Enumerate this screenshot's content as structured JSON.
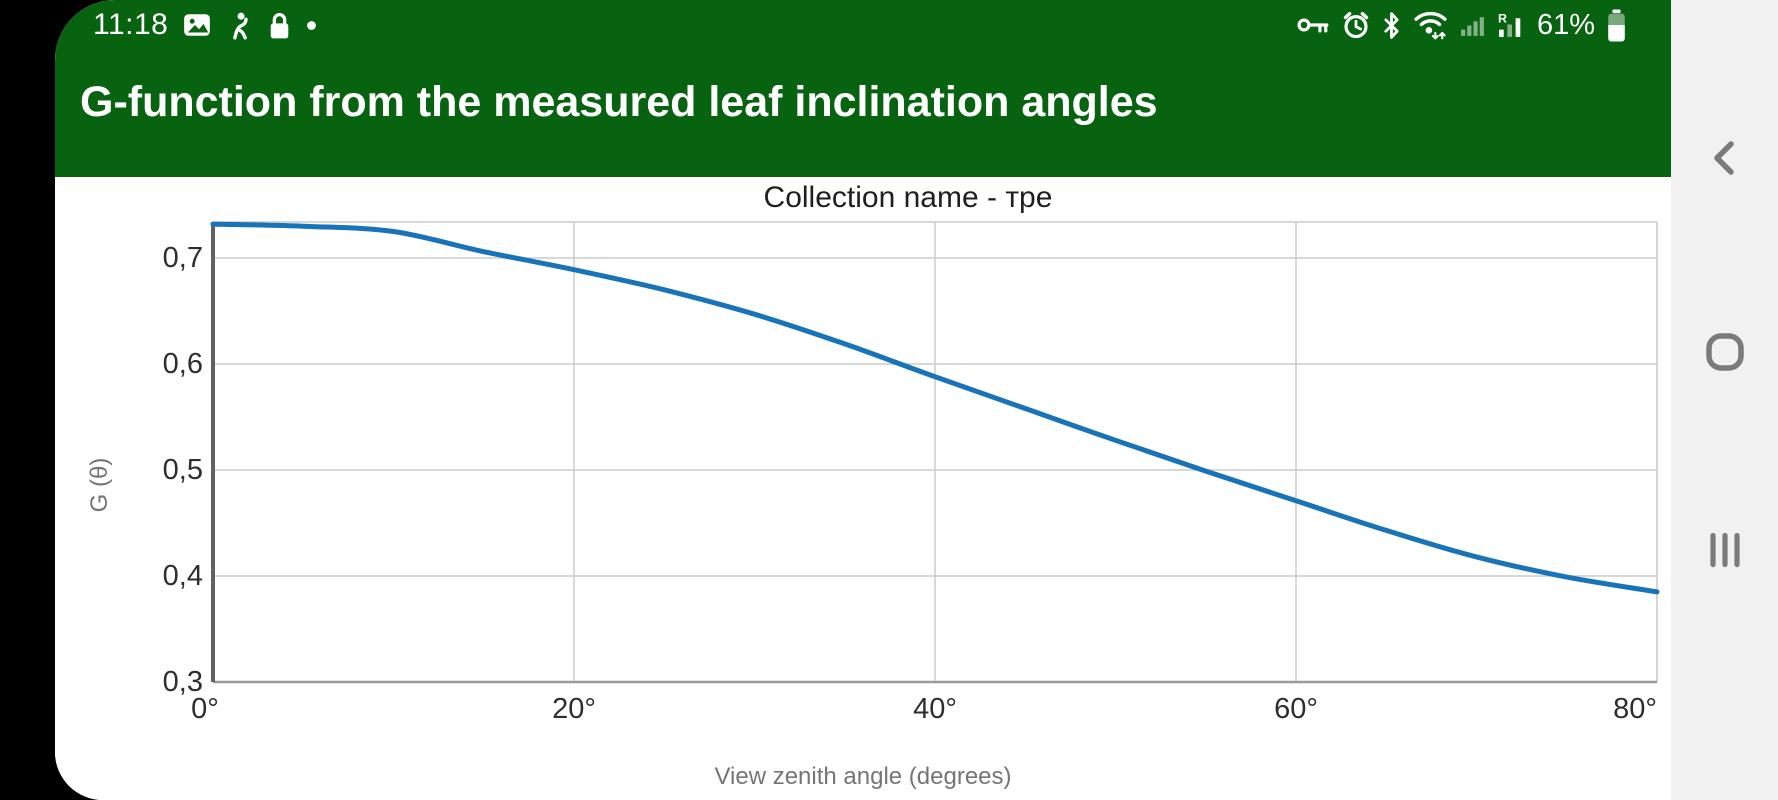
{
  "status_bar": {
    "time": "11:18",
    "battery_level": "61%",
    "roaming_label": "R",
    "left_icons": [
      "image-icon",
      "person-icon",
      "lock-icon",
      "notification-dot"
    ],
    "right_icons": [
      "vpn-key-icon",
      "alarm-icon",
      "bluetooth-icon",
      "wifi-icon",
      "signal-weak-icon",
      "signal-roaming-icon",
      "battery-icon"
    ]
  },
  "header": {
    "title": "G-function from the measured leaf inclination angles"
  },
  "nav_bar": {
    "icons": [
      "back-icon",
      "home-icon",
      "recents-icon"
    ]
  },
  "colors": {
    "header_green": "#086311",
    "curve_blue": "#1873B9",
    "nav_bg": "#F1F1F1",
    "grid_gray": "#CCCCCC",
    "axis_dark": "#616161"
  },
  "chart_data": {
    "type": "line",
    "title": "Collection name - тре",
    "xlabel": "View zenith angle (degrees)",
    "ylabel": "G (θ)",
    "x": [
      0,
      5,
      10,
      15,
      20,
      25,
      30,
      35,
      40,
      45,
      50,
      55,
      60,
      65,
      70,
      75,
      80
    ],
    "y": [
      0.732,
      0.73,
      0.725,
      0.706,
      0.689,
      0.67,
      0.647,
      0.619,
      0.588,
      0.558,
      0.528,
      0.499,
      0.471,
      0.443,
      0.418,
      0.399,
      0.385
    ],
    "xlim": [
      0,
      80
    ],
    "ylim": [
      0.3,
      0.734
    ],
    "x_ticks": [
      0,
      20,
      40,
      60,
      80
    ],
    "x_tick_labels": [
      "0°",
      "20°",
      "40°",
      "60°",
      "80°"
    ],
    "y_ticks": [
      0.3,
      0.4,
      0.5,
      0.6,
      0.7
    ],
    "y_tick_labels": [
      "0,3",
      "0,4",
      "0,5",
      "0,6",
      "0,7"
    ],
    "grid": true,
    "legend": "none",
    "line_color": "#1873B9"
  }
}
